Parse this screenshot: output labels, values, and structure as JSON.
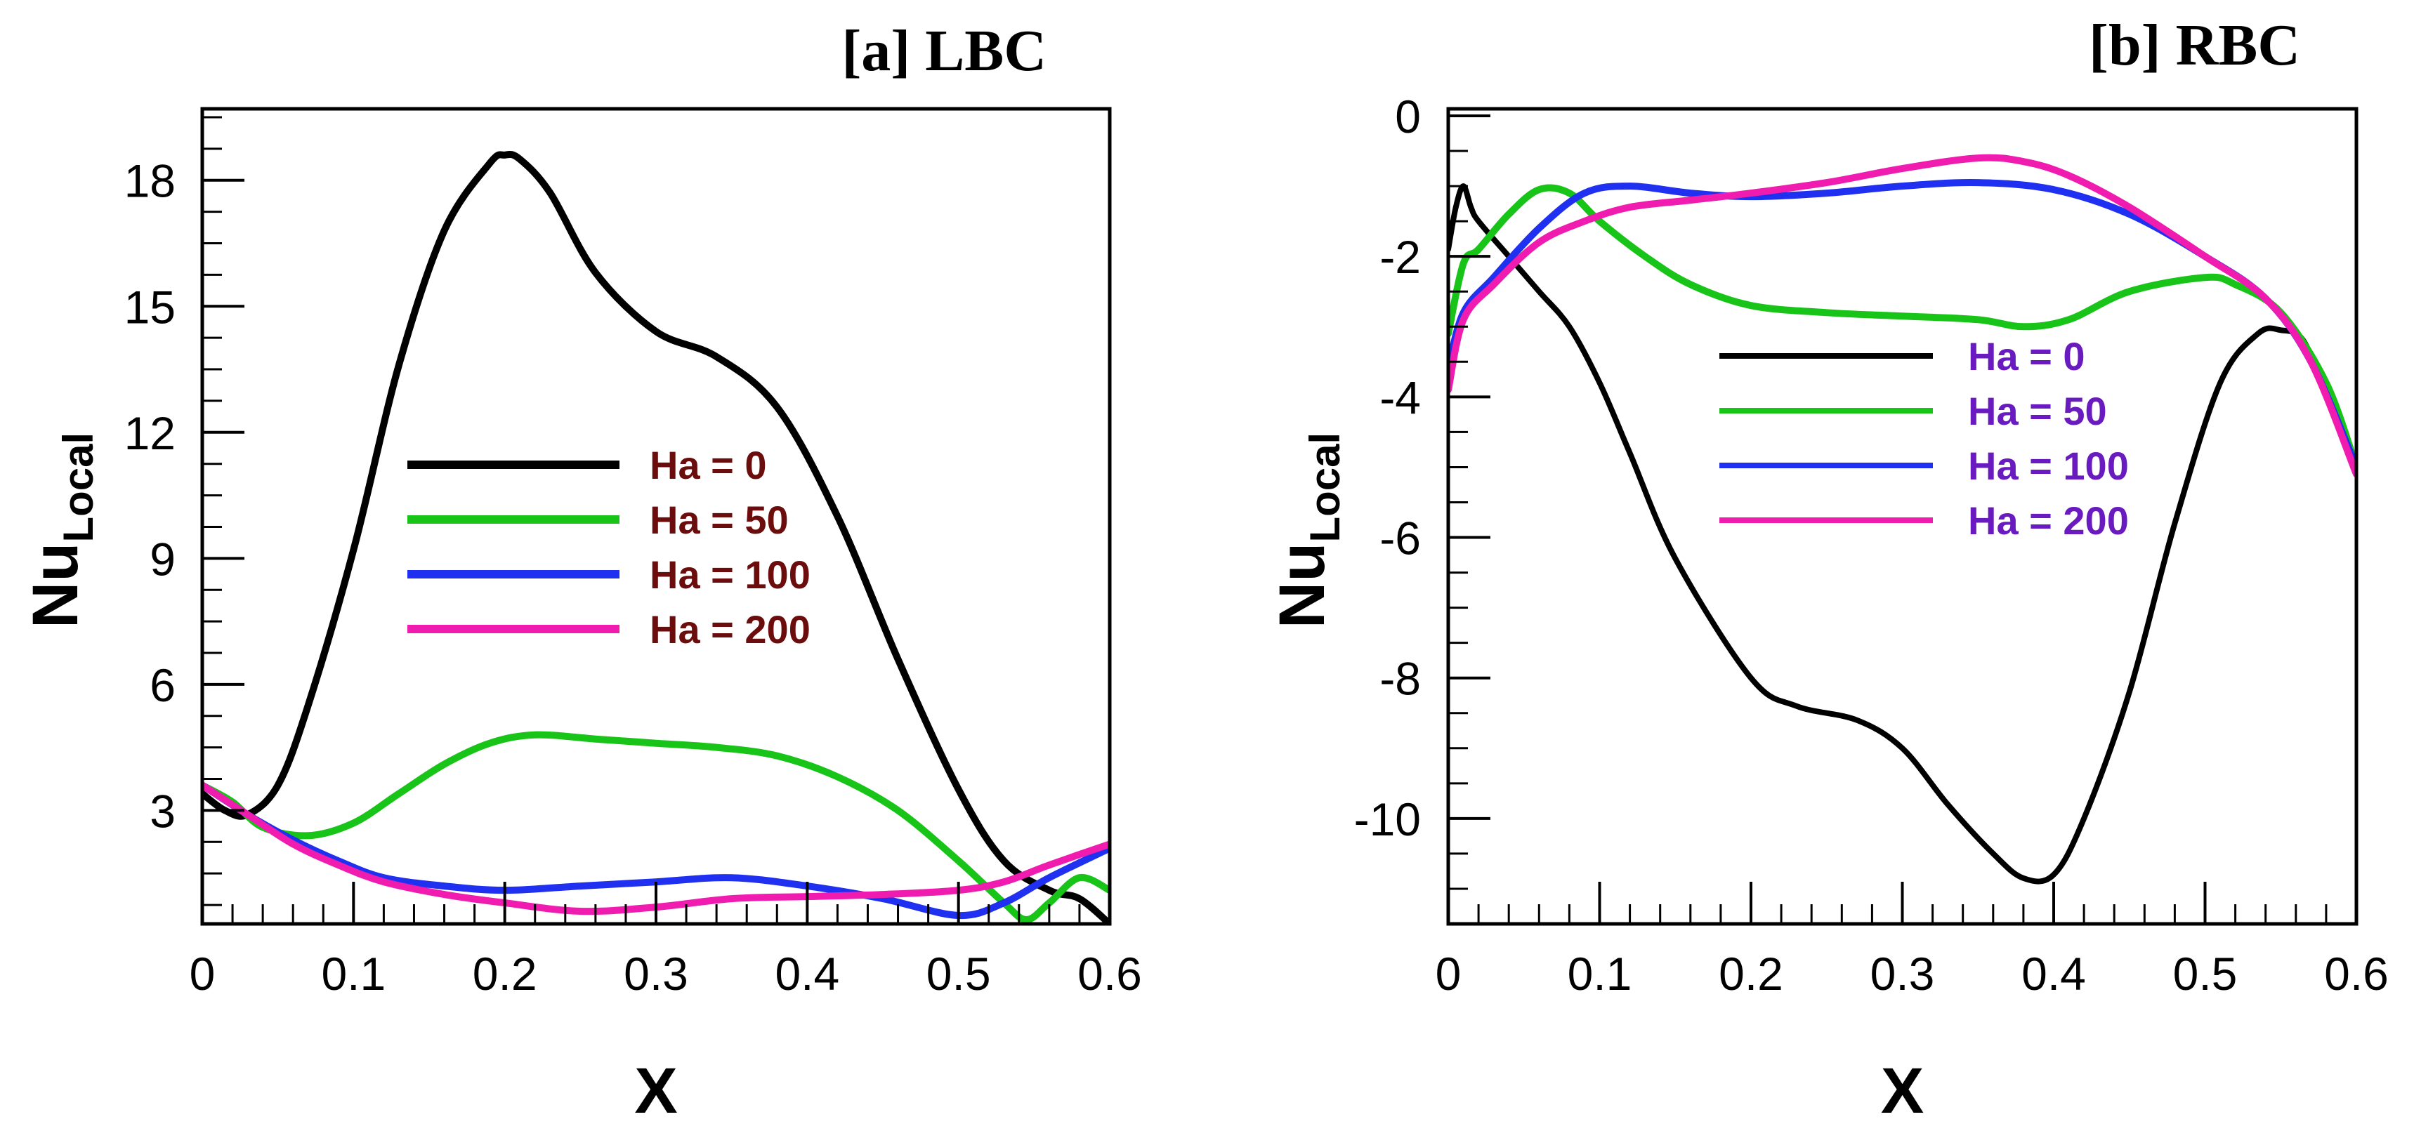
{
  "chart_data": [
    {
      "type": "line",
      "title": "[a] LBC",
      "xlabel": "X",
      "ylabel_main": "Nu",
      "ylabel_sub": "Local",
      "xlim": [
        0,
        0.6
      ],
      "ylim": [
        0.3,
        19.7
      ],
      "xticks": [
        0,
        0.1,
        0.2,
        0.3,
        0.4,
        0.5,
        0.6
      ],
      "yticks": [
        3,
        6,
        9,
        12,
        15,
        18
      ],
      "legend_color": "#6b0d0d",
      "legend_position": "center-left",
      "series": [
        {
          "name": "Ha = 0",
          "color": "#000000",
          "x": [
            0,
            0.015,
            0.03,
            0.05,
            0.07,
            0.1,
            0.13,
            0.16,
            0.19,
            0.2,
            0.21,
            0.23,
            0.26,
            0.3,
            0.34,
            0.38,
            0.42,
            0.46,
            0.5,
            0.53,
            0.56,
            0.58,
            0.6
          ],
          "y": [
            3.4,
            3.0,
            2.9,
            3.6,
            5.5,
            9.2,
            13.6,
            16.8,
            18.4,
            18.6,
            18.5,
            17.7,
            15.8,
            14.4,
            13.8,
            12.6,
            10.0,
            6.6,
            3.5,
            1.8,
            1.1,
            0.9,
            0.3
          ]
        },
        {
          "name": "Ha = 50",
          "color": "#18c418",
          "x": [
            0,
            0.02,
            0.04,
            0.07,
            0.1,
            0.13,
            0.16,
            0.19,
            0.22,
            0.26,
            0.3,
            0.34,
            0.38,
            0.42,
            0.46,
            0.5,
            0.53,
            0.545,
            0.56,
            0.58,
            0.6
          ],
          "y": [
            3.6,
            3.2,
            2.6,
            2.4,
            2.7,
            3.4,
            4.1,
            4.6,
            4.8,
            4.7,
            4.6,
            4.5,
            4.3,
            3.8,
            3.0,
            1.8,
            0.8,
            0.4,
            0.8,
            1.4,
            1.1
          ]
        },
        {
          "name": "Ha = 100",
          "color": "#2030f0",
          "x": [
            0,
            0.03,
            0.06,
            0.09,
            0.12,
            0.16,
            0.2,
            0.25,
            0.3,
            0.35,
            0.4,
            0.45,
            0.5,
            0.53,
            0.56,
            0.6
          ],
          "y": [
            3.6,
            2.9,
            2.3,
            1.8,
            1.4,
            1.2,
            1.1,
            1.2,
            1.3,
            1.4,
            1.2,
            0.9,
            0.5,
            0.8,
            1.4,
            2.1
          ]
        },
        {
          "name": "Ha = 200",
          "color": "#f01cb0",
          "x": [
            0,
            0.03,
            0.06,
            0.09,
            0.12,
            0.16,
            0.2,
            0.25,
            0.3,
            0.35,
            0.4,
            0.45,
            0.5,
            0.53,
            0.56,
            0.6
          ],
          "y": [
            3.6,
            2.9,
            2.2,
            1.7,
            1.3,
            1.0,
            0.8,
            0.6,
            0.7,
            0.9,
            0.95,
            1.0,
            1.1,
            1.3,
            1.7,
            2.2
          ]
        }
      ],
      "legend_entries": [
        "Ha = 0",
        "Ha = 50",
        "Ha = 100",
        "Ha = 200"
      ]
    },
    {
      "type": "line",
      "title": "[b] RBC",
      "xlabel": "X",
      "ylabel_main": "Nu",
      "ylabel_sub": "Local",
      "xlim": [
        0,
        0.6
      ],
      "ylim": [
        -11.5,
        0.1
      ],
      "xticks": [
        0,
        0.1,
        0.2,
        0.3,
        0.4,
        0.5,
        0.6
      ],
      "yticks": [
        0,
        -2,
        -4,
        -6,
        -8,
        -10
      ],
      "legend_color": "#6a1bbf",
      "legend_position": "upper-center",
      "series": [
        {
          "name": "Ha = 0",
          "color": "#000000",
          "x": [
            0,
            0.005,
            0.01,
            0.015,
            0.02,
            0.04,
            0.06,
            0.08,
            0.1,
            0.12,
            0.15,
            0.2,
            0.23,
            0.27,
            0.3,
            0.33,
            0.36,
            0.38,
            0.4,
            0.42,
            0.45,
            0.48,
            0.51,
            0.535,
            0.55,
            0.565,
            0.58,
            0.6
          ],
          "y": [
            -1.9,
            -1.3,
            -1.0,
            -1.3,
            -1.5,
            -2.0,
            -2.5,
            -3.0,
            -3.8,
            -4.8,
            -6.3,
            -8.0,
            -8.4,
            -8.6,
            -9.0,
            -9.8,
            -10.5,
            -10.85,
            -10.8,
            -10.0,
            -8.2,
            -5.8,
            -3.8,
            -3.1,
            -3.05,
            -3.2,
            -4.0,
            -5.0
          ]
        },
        {
          "name": "Ha = 50",
          "color": "#18c418",
          "x": [
            0,
            0.01,
            0.02,
            0.04,
            0.06,
            0.08,
            0.1,
            0.13,
            0.16,
            0.2,
            0.25,
            0.3,
            0.35,
            0.38,
            0.41,
            0.45,
            0.5,
            0.52,
            0.55,
            0.58,
            0.6
          ],
          "y": [
            -3.1,
            -2.1,
            -1.9,
            -1.4,
            -1.05,
            -1.1,
            -1.5,
            -2.0,
            -2.4,
            -2.7,
            -2.8,
            -2.85,
            -2.9,
            -3.0,
            -2.9,
            -2.5,
            -2.3,
            -2.4,
            -2.8,
            -3.8,
            -5.0
          ]
        },
        {
          "name": "Ha = 100",
          "color": "#2030f0",
          "x": [
            0,
            0.01,
            0.03,
            0.06,
            0.09,
            0.12,
            0.16,
            0.2,
            0.25,
            0.3,
            0.35,
            0.4,
            0.45,
            0.5,
            0.54,
            0.57,
            0.6
          ],
          "y": [
            -3.6,
            -2.8,
            -2.3,
            -1.6,
            -1.1,
            -1.0,
            -1.1,
            -1.15,
            -1.1,
            -1.0,
            -0.95,
            -1.05,
            -1.4,
            -2.0,
            -2.6,
            -3.5,
            -5.0
          ]
        },
        {
          "name": "Ha = 200",
          "color": "#f01cb0",
          "x": [
            0,
            0.01,
            0.03,
            0.06,
            0.09,
            0.12,
            0.16,
            0.2,
            0.25,
            0.3,
            0.35,
            0.38,
            0.41,
            0.45,
            0.5,
            0.54,
            0.57,
            0.6
          ],
          "y": [
            -3.9,
            -2.9,
            -2.4,
            -1.8,
            -1.5,
            -1.3,
            -1.2,
            -1.1,
            -0.95,
            -0.75,
            -0.6,
            -0.65,
            -0.85,
            -1.3,
            -2.0,
            -2.6,
            -3.5,
            -5.1
          ]
        }
      ],
      "legend_entries": [
        "Ha = 0",
        "Ha = 50",
        "Ha = 100",
        "Ha = 200"
      ]
    }
  ]
}
